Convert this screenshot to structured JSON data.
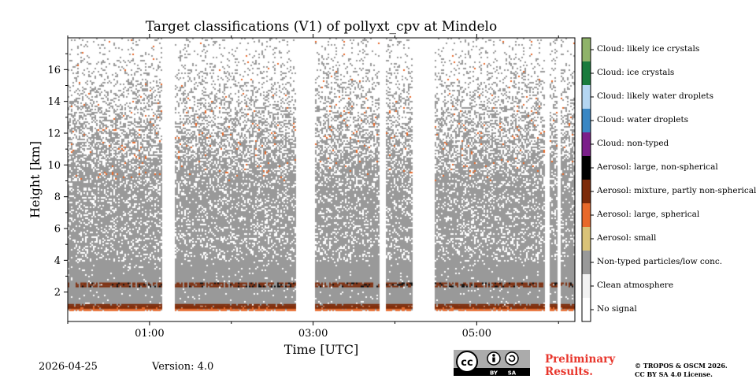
{
  "chart_data": {
    "type": "heatmap",
    "title": "Target classifications (V1) of pollyxt_cpv at Mindelo",
    "xlabel": "Time [UTC]",
    "ylabel": "Height [km]",
    "x_ticks": [
      "01:00",
      "03:00",
      "05:00"
    ],
    "x_tick_hours": [
      1,
      3,
      5
    ],
    "x_minor_hours": [
      0,
      2,
      4,
      6
    ],
    "x_range_hours": [
      0,
      6.2
    ],
    "y_ticks": [
      2,
      4,
      6,
      8,
      10,
      12,
      14,
      16
    ],
    "ylim_km": [
      0.15,
      18
    ],
    "data_gaps_hours": [
      [
        1.15,
        1.3
      ],
      [
        2.78,
        3.02
      ],
      [
        3.8,
        3.88
      ],
      [
        4.2,
        4.48
      ],
      [
        5.82,
        5.88
      ],
      [
        5.98,
        6.02
      ]
    ],
    "layers": [
      {
        "class": "Aerosol: large, spherical",
        "from_km": 0.9,
        "to_km": 1.1
      },
      {
        "class": "Aerosol: mixture, partly non-spherical",
        "from_km": 1.0,
        "to_km": 1.25
      },
      {
        "class": "Aerosol: mixture, partly non-spherical",
        "from_km": 2.35,
        "to_km": 2.6
      },
      {
        "class": "Non-typed particles/low conc.",
        "from_km": 1.1,
        "to_km": 9
      }
    ],
    "classes": [
      {
        "label": "Cloud: likely ice crystals",
        "color": "#8fb36a"
      },
      {
        "label": "Cloud: ice crystals",
        "color": "#197b3d"
      },
      {
        "label": "Cloud: likely water droplets",
        "color": "#b4d6f2"
      },
      {
        "label": "Cloud: water droplets",
        "color": "#3a87c4"
      },
      {
        "label": "Cloud: non-typed",
        "color": "#7b1f8a"
      },
      {
        "label": "Aerosol: large, non-spherical",
        "color": "#000000"
      },
      {
        "label": "Aerosol: mixture, partly non-spherical",
        "color": "#7d2b0a"
      },
      {
        "label": "Aerosol: large, spherical",
        "color": "#e8692a"
      },
      {
        "label": "Aerosol: small",
        "color": "#d9c378"
      },
      {
        "label": "Non-typed particles/low conc.",
        "color": "#999999"
      },
      {
        "label": "Clean atmosphere",
        "color": "#f2f2f2"
      },
      {
        "label": "No signal",
        "color": "#ffffff"
      }
    ]
  },
  "footer": {
    "date": "2026-04-25",
    "version": "Version: 4.0",
    "preliminary_line1": "Preliminary",
    "preliminary_line2": "Results.",
    "copyright_line1": "© TROPOS & OSCM 2026.",
    "copyright_line2": "CC BY SA 4.0 License."
  },
  "license_badge": {
    "by": "BY",
    "sa": "SA",
    "cc": "cc"
  }
}
